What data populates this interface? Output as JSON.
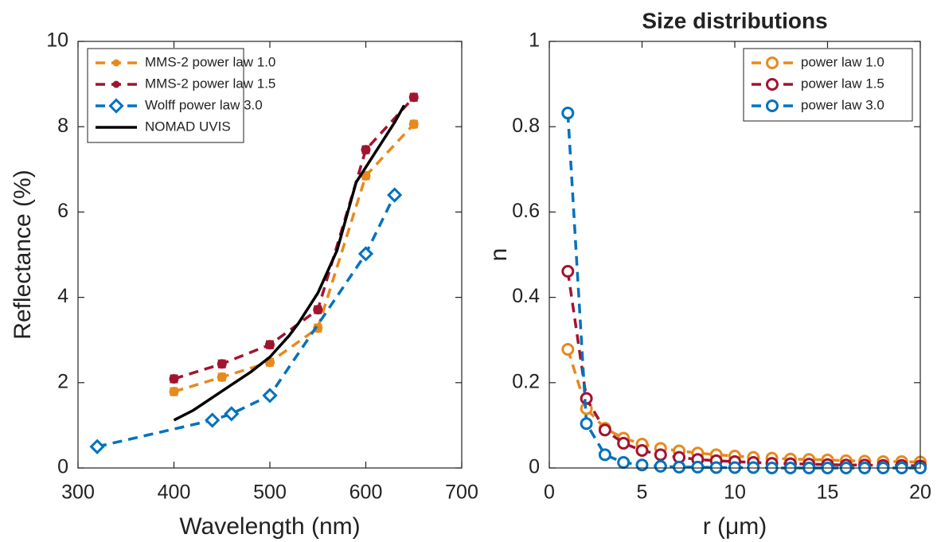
{
  "chart_data": [
    {
      "type": "line",
      "xlabel": "Wavelength (nm)",
      "ylabel": "Reflectance (%)",
      "xlim": [
        300,
        700
      ],
      "xticks": [
        300,
        400,
        500,
        600,
        700
      ],
      "ylim": [
        0,
        10
      ],
      "yticks": [
        0,
        2,
        4,
        6,
        8,
        10
      ],
      "legend": "upper left",
      "series": [
        {
          "name": "MMS-2 power law 1.0",
          "color": "#e8891c",
          "marker": "dot",
          "dashed": true,
          "x": [
            400,
            450,
            500,
            550,
            600,
            650
          ],
          "values": [
            1.79,
            2.13,
            2.48,
            3.28,
            6.85,
            8.06
          ],
          "errors": [
            0.08,
            0.08,
            0.08,
            0.08,
            0.08,
            0.08
          ]
        },
        {
          "name": "MMS-2 power law 1.5",
          "color": "#a2142f",
          "marker": "dot",
          "dashed": true,
          "x": [
            400,
            450,
            500,
            550,
            600,
            650
          ],
          "values": [
            2.09,
            2.44,
            2.89,
            3.71,
            7.46,
            8.69
          ],
          "errors": [
            0.08,
            0.08,
            0.08,
            0.08,
            0.08,
            0.08
          ]
        },
        {
          "name": "Wolff power law 3.0",
          "color": "#0072bd",
          "marker": "diamond",
          "dashed": true,
          "x": [
            320,
            440,
            460,
            500,
            600,
            630
          ],
          "values": [
            0.5,
            1.12,
            1.27,
            1.7,
            5.02,
            6.4
          ]
        },
        {
          "name": "NOMAD UVIS",
          "color": "#000000",
          "marker": "none",
          "dashed": false,
          "x": [
            400,
            420,
            440,
            460,
            480,
            500,
            520,
            530,
            550,
            570,
            590,
            610,
            630,
            640
          ],
          "values": [
            1.12,
            1.35,
            1.65,
            1.95,
            2.25,
            2.6,
            3.1,
            3.4,
            4.1,
            5.1,
            6.7,
            7.4,
            8.1,
            8.5
          ]
        }
      ]
    },
    {
      "type": "line",
      "title": "Size distributions",
      "xlabel": "r (μm)",
      "ylabel": "n",
      "xlim": [
        0,
        20
      ],
      "xticks": [
        0,
        5,
        10,
        15,
        20
      ],
      "ylim": [
        0,
        1
      ],
      "yticks": [
        0,
        0.2,
        0.4,
        0.6,
        0.8,
        1
      ],
      "legend": "upper right",
      "x": [
        1,
        2,
        3,
        4,
        5,
        6,
        7,
        8,
        9,
        10,
        11,
        12,
        13,
        14,
        15,
        16,
        17,
        18,
        19,
        20
      ],
      "series": [
        {
          "name": "power law 1.0",
          "color": "#e8891c",
          "marker": "circle",
          "dashed": true,
          "values": [
            0.278,
            0.139,
            0.093,
            0.07,
            0.056,
            0.046,
            0.04,
            0.035,
            0.031,
            0.028,
            0.025,
            0.023,
            0.021,
            0.02,
            0.019,
            0.017,
            0.016,
            0.015,
            0.015,
            0.014
          ]
        },
        {
          "name": "power law 1.5",
          "color": "#a2142f",
          "marker": "circle",
          "dashed": true,
          "values": [
            0.461,
            0.163,
            0.089,
            0.058,
            0.041,
            0.031,
            0.025,
            0.02,
            0.017,
            0.015,
            0.013,
            0.011,
            0.01,
            0.009,
            0.008,
            0.007,
            0.007,
            0.006,
            0.006,
            0.005
          ]
        },
        {
          "name": "power law 3.0",
          "color": "#0072bd",
          "marker": "circle",
          "dashed": true,
          "values": [
            0.832,
            0.104,
            0.031,
            0.013,
            0.007,
            0.004,
            0.002,
            0.002,
            0.001,
            0.001,
            0.001,
            0,
            0,
            0,
            0,
            0,
            0,
            0,
            0,
            0
          ]
        }
      ]
    }
  ]
}
